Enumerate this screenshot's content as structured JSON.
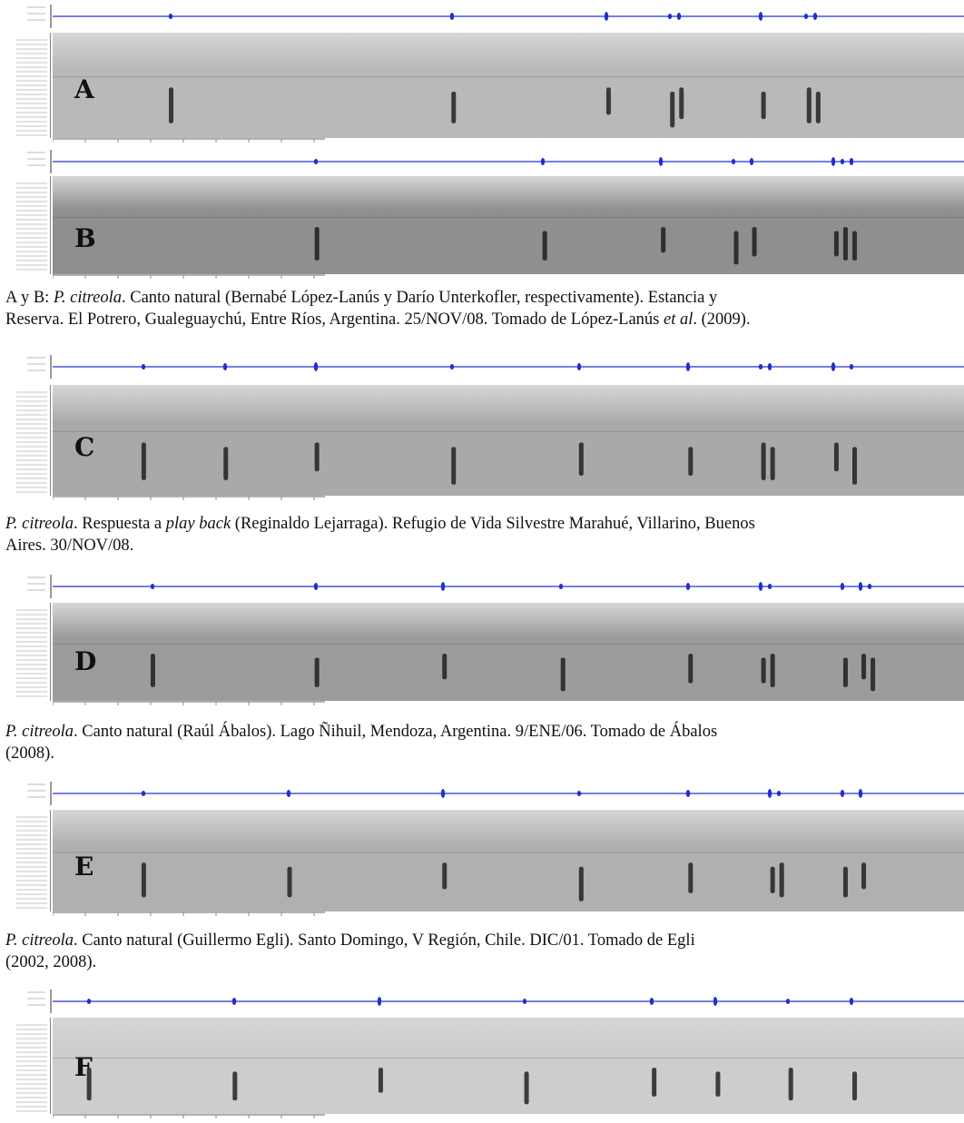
{
  "panels": [
    {
      "letter": "A",
      "pulses": [
        0.13,
        0.44,
        0.61,
        0.68,
        0.69,
        0.78,
        0.83,
        0.84
      ]
    },
    {
      "letter": "B",
      "pulses": [
        0.29,
        0.54,
        0.67,
        0.75,
        0.77,
        0.86,
        0.87,
        0.88
      ]
    },
    {
      "letter": "C",
      "pulses": [
        0.1,
        0.19,
        0.29,
        0.44,
        0.58,
        0.7,
        0.78,
        0.79,
        0.86,
        0.88
      ]
    },
    {
      "letter": "D",
      "pulses": [
        0.11,
        0.29,
        0.43,
        0.56,
        0.7,
        0.78,
        0.79,
        0.87,
        0.89,
        0.9
      ]
    },
    {
      "letter": "E",
      "pulses": [
        0.1,
        0.26,
        0.43,
        0.58,
        0.7,
        0.79,
        0.8,
        0.87,
        0.89
      ]
    },
    {
      "letter": "F",
      "pulses": [
        0.04,
        0.2,
        0.36,
        0.52,
        0.66,
        0.73,
        0.81,
        0.88
      ]
    }
  ],
  "captions": {
    "ab": {
      "line1_prefix": "A y B: ",
      "line1_species": "P. citreola",
      "line1_rest": ". Canto natural (Bernabé López-Lanús y Darío Unterkofler, respectivamente). Estancia y",
      "line2_prefix": "Reserva. El Potrero, Gualeguaychú, Entre Ríos, Argentina. 25/NOV/08. Tomado de López-Lanús ",
      "line2_etal": "et al",
      "line2_rest": ". (2009)."
    },
    "c": {
      "line1_species": "P. citreola",
      "line1_mid": ". Respuesta a ",
      "line1_playback": "play back",
      "line1_rest": " (Reginaldo Lejarraga). Refugio de Vida Silvestre Marahué, Villarino, Buenos",
      "line2": "Aires. 30/NOV/08."
    },
    "d": {
      "line1_species": "P. citreola",
      "line1_rest": ". Canto natural (Raúl Ábalos). Lago Ñihuil, Mendoza, Argentina. 9/ENE/06. Tomado de Ábalos",
      "line2": "(2008)."
    },
    "e": {
      "line1_species": "P. citreola",
      "line1_rest": ".  Canto natural (Guillermo Egli). Santo Domingo, V Región, Chile. DIC/01. Tomado de Egli",
      "line2": "(2002, 2008)."
    }
  }
}
